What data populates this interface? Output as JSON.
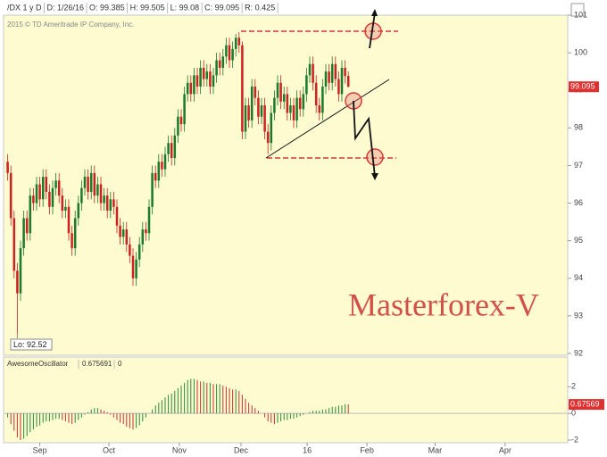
{
  "chart_data": {
    "type": "candlestick",
    "header_fields": [
      "/DX 1 y D",
      "D: 1/26/16",
      "O: 99.385",
      "H: 99.505",
      "L: 99.08",
      "C: 99.095",
      "R: 0.425"
    ],
    "copyright": "2015 © TD Ameritrade IP Company, Inc.",
    "watermark": "Masterforex-V",
    "low_label": "Lo: 92.52",
    "up_color": "#1b7a2c",
    "down_color": "#cc2222",
    "xlim": [
      -1,
      174
    ],
    "xticks": [
      {
        "value": 10,
        "label": "Sep"
      },
      {
        "value": 31.5,
        "label": "Oct"
      },
      {
        "value": 53.4,
        "label": "Nov"
      },
      {
        "value": 72.6,
        "label": "Dec"
      },
      {
        "value": 93.2,
        "label": "16"
      },
      {
        "value": 111.8,
        "label": "Feb"
      },
      {
        "value": 133,
        "label": "Mar"
      },
      {
        "value": 154.8,
        "label": "Apr"
      }
    ],
    "ylim": [
      92,
      101
    ],
    "yticks": [
      92,
      93,
      94,
      95,
      96,
      97,
      98,
      99,
      100,
      101
    ],
    "open": [
      97.1,
      96.8,
      95.6,
      94.2,
      93.6,
      94.8,
      95.6,
      95.2,
      96.2,
      96.0,
      96.5,
      96.1,
      96.7,
      96.3,
      95.9,
      96.4,
      96.6,
      96.2,
      95.8,
      95.9,
      95.2,
      94.8,
      95.6,
      96.0,
      96.4,
      96.7,
      96.3,
      96.8,
      96.2,
      96.5,
      96.0,
      96.2,
      95.8,
      96.1,
      95.9,
      95.4,
      95.1,
      95.3,
      94.9,
      94.6,
      94.0,
      94.5,
      94.9,
      95.3,
      95.2,
      95.9,
      96.8,
      96.6,
      97.1,
      96.9,
      97.3,
      97.6,
      97.2,
      97.8,
      98.3,
      98.1,
      98.9,
      99.2,
      98.9,
      99.4,
      99.1,
      99.6,
      99.3,
      99.5,
      99.1,
      99.4,
      99.8,
      99.6,
      99.9,
      100.2,
      99.8,
      100.1,
      100.4,
      100.2,
      97.9,
      98.6,
      98.2,
      99.1,
      98.8,
      98.3,
      98.6,
      97.9,
      97.6,
      98.4,
      98.8,
      99.2,
      98.7,
      98.9,
      98.4,
      98.6,
      98.2,
      98.8,
      98.5,
      98.9,
      99.4,
      99.7,
      99.2,
      98.6,
      98.4,
      99.1,
      99.5,
      99.2,
      99.7,
      99.3,
      98.9,
      99.6,
      99.385
    ],
    "high": [
      97.3,
      97.0,
      95.8,
      94.4,
      95.0,
      95.8,
      95.8,
      96.4,
      96.4,
      96.7,
      96.7,
      96.9,
      96.9,
      96.5,
      96.6,
      96.8,
      96.8,
      96.4,
      96.1,
      96.1,
      95.4,
      95.8,
      96.2,
      96.6,
      96.9,
      96.9,
      97.0,
      97.0,
      96.7,
      96.7,
      96.4,
      96.4,
      96.3,
      96.3,
      96.1,
      95.6,
      95.5,
      95.5,
      95.1,
      94.8,
      94.7,
      95.1,
      95.5,
      95.5,
      96.1,
      97.0,
      97.0,
      97.3,
      97.3,
      97.5,
      97.8,
      97.8,
      98.0,
      98.5,
      98.5,
      99.1,
      99.4,
      99.4,
      99.6,
      99.6,
      99.8,
      99.8,
      99.7,
      99.7,
      99.6,
      100.0,
      100.0,
      100.1,
      100.4,
      100.4,
      100.3,
      100.5,
      100.55,
      100.3,
      98.8,
      98.8,
      99.3,
      99.3,
      99.0,
      98.8,
      98.8,
      98.1,
      98.6,
      99.0,
      99.4,
      99.4,
      99.1,
      99.1,
      98.8,
      98.8,
      99.0,
      99.0,
      99.1,
      99.6,
      99.9,
      99.9,
      99.4,
      98.8,
      99.3,
      99.7,
      99.7,
      99.9,
      99.9,
      99.5,
      99.8,
      99.8,
      99.505
    ],
    "low": [
      96.6,
      95.4,
      94.0,
      92.52,
      93.4,
      94.6,
      95.0,
      95.0,
      95.8,
      95.8,
      95.9,
      95.9,
      96.1,
      95.7,
      95.7,
      96.2,
      96.0,
      95.6,
      95.6,
      95.0,
      94.6,
      94.6,
      95.4,
      95.8,
      96.2,
      96.1,
      96.1,
      96.0,
      96.0,
      95.8,
      95.8,
      95.6,
      95.6,
      95.7,
      95.2,
      94.9,
      94.9,
      94.7,
      94.4,
      93.8,
      93.8,
      94.3,
      94.7,
      95.0,
      95.0,
      95.7,
      96.4,
      96.4,
      96.7,
      96.7,
      97.1,
      97.0,
      97.0,
      97.6,
      97.9,
      97.9,
      98.7,
      98.7,
      98.7,
      98.9,
      98.9,
      99.1,
      99.1,
      98.9,
      98.9,
      99.2,
      99.4,
      99.4,
      99.7,
      99.6,
      99.6,
      99.9,
      100.0,
      97.7,
      97.7,
      98.0,
      98.0,
      98.6,
      98.1,
      98.1,
      97.7,
      97.3,
      97.4,
      98.2,
      98.6,
      98.5,
      98.5,
      98.2,
      98.2,
      98.0,
      98.0,
      98.3,
      98.3,
      98.7,
      99.2,
      99.0,
      98.4,
      98.2,
      98.2,
      98.9,
      99.0,
      99.0,
      99.1,
      98.7,
      98.7,
      99.18,
      99.08
    ],
    "close": [
      96.8,
      95.6,
      94.2,
      93.6,
      94.8,
      95.6,
      95.2,
      96.2,
      96.0,
      96.5,
      96.1,
      96.7,
      96.3,
      95.9,
      96.4,
      96.6,
      96.2,
      95.8,
      95.9,
      95.2,
      94.8,
      95.6,
      96.0,
      96.4,
      96.7,
      96.3,
      96.8,
      96.2,
      96.5,
      96.0,
      96.2,
      95.8,
      96.1,
      95.9,
      95.4,
      95.1,
      95.3,
      94.9,
      94.6,
      94.0,
      94.5,
      94.9,
      95.3,
      95.2,
      95.9,
      96.8,
      96.6,
      97.1,
      96.9,
      97.3,
      97.6,
      97.2,
      97.8,
      98.3,
      98.1,
      98.9,
      99.2,
      98.9,
      99.4,
      99.1,
      99.6,
      99.3,
      99.5,
      99.1,
      99.4,
      99.8,
      99.6,
      99.9,
      100.2,
      99.8,
      100.1,
      100.4,
      100.2,
      97.9,
      98.6,
      98.2,
      99.1,
      98.8,
      98.3,
      98.6,
      97.9,
      97.6,
      98.4,
      98.8,
      99.2,
      98.7,
      98.9,
      98.4,
      98.6,
      98.2,
      98.8,
      98.5,
      98.9,
      99.4,
      99.7,
      99.2,
      98.6,
      98.4,
      99.1,
      99.5,
      99.2,
      99.7,
      99.3,
      98.9,
      99.6,
      99.38,
      99.095
    ],
    "oscillator": {
      "name": "AwesomeOscillator",
      "readout": "0.675691",
      "readout2": "0",
      "tag": "0.67569",
      "up_color": "#2a8a3a",
      "down_color": "#c83232",
      "ylim": [
        -2.2,
        4.1
      ],
      "yticks": [
        2,
        0,
        -2
      ],
      "values": [
        -0.3,
        -0.8,
        -1.3,
        -1.8,
        -2.0,
        -1.9,
        -1.7,
        -1.4,
        -1.2,
        -1.0,
        -0.9,
        -0.7,
        -0.6,
        -0.6,
        -0.5,
        -0.4,
        -0.4,
        -0.5,
        -0.6,
        -0.7,
        -0.8,
        -0.7,
        -0.5,
        -0.3,
        -0.1,
        0.1,
        0.3,
        0.4,
        0.4,
        0.3,
        0.2,
        0.1,
        -0.1,
        -0.3,
        -0.5,
        -0.7,
        -0.8,
        -1.0,
        -1.1,
        -1.2,
        -1.1,
        -0.9,
        -0.6,
        -0.3,
        0.0,
        0.3,
        0.6,
        0.8,
        1.0,
        1.2,
        1.4,
        1.5,
        1.7,
        1.9,
        2.1,
        2.3,
        2.5,
        2.6,
        2.6,
        2.5,
        2.4,
        2.4,
        2.3,
        2.3,
        2.2,
        2.2,
        2.2,
        2.1,
        2.0,
        1.9,
        1.8,
        1.8,
        1.7,
        1.4,
        1.1,
        0.8,
        0.6,
        0.4,
        0.2,
        0.0,
        -0.3,
        -0.6,
        -0.7,
        -0.8,
        -0.7,
        -0.6,
        -0.5,
        -0.5,
        -0.4,
        -0.4,
        -0.3,
        -0.2,
        -0.1,
        0.0,
        0.1,
        0.2,
        0.2,
        0.2,
        0.3,
        0.3,
        0.4,
        0.5,
        0.5,
        0.6,
        0.6,
        0.7,
        0.675691
      ]
    }
  }
}
